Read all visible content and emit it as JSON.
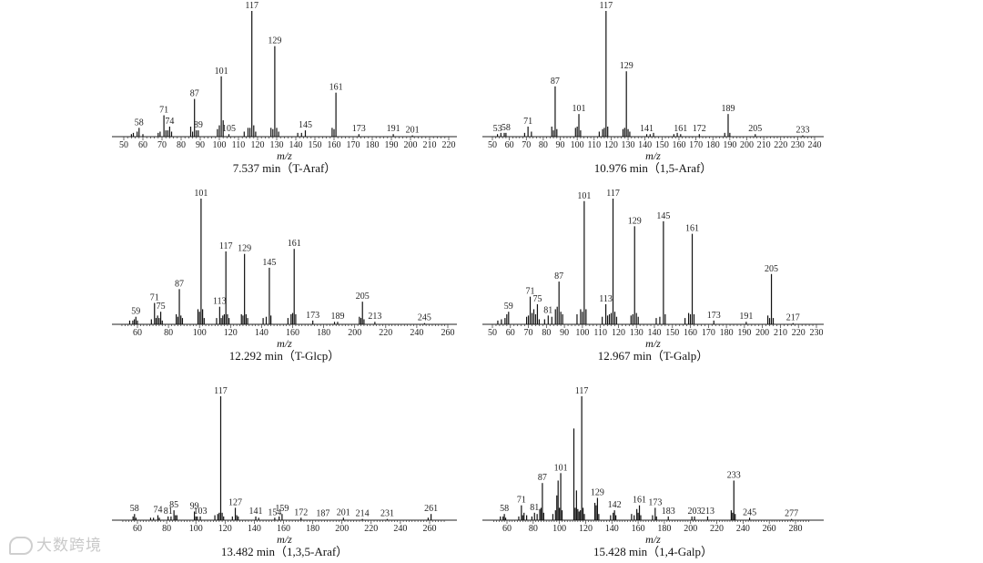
{
  "watermark": {
    "text": "大数跨境",
    "icon": "chat-bubble-logo"
  },
  "chart_data": [
    {
      "type": "bar",
      "caption": "7.537 min（T-Araf）",
      "xlabel": "m/z",
      "xlim": [
        50,
        220
      ],
      "xticks": [
        50,
        60,
        70,
        80,
        90,
        100,
        110,
        120,
        130,
        140,
        150,
        160,
        170,
        180,
        190,
        200,
        210,
        220
      ],
      "peaks": [
        [
          54,
          2
        ],
        [
          55,
          3
        ],
        [
          57,
          4
        ],
        [
          58,
          7
        ],
        [
          60,
          2
        ],
        [
          68,
          3
        ],
        [
          69,
          4
        ],
        [
          71,
          17
        ],
        [
          72,
          5
        ],
        [
          73,
          5
        ],
        [
          74,
          8
        ],
        [
          75,
          4
        ],
        [
          85,
          8
        ],
        [
          86,
          4
        ],
        [
          87,
          30
        ],
        [
          88,
          5
        ],
        [
          89,
          5
        ],
        [
          99,
          6
        ],
        [
          100,
          9
        ],
        [
          101,
          48
        ],
        [
          102,
          13
        ],
        [
          105,
          2
        ],
        [
          113,
          4
        ],
        [
          115,
          7
        ],
        [
          116,
          7
        ],
        [
          117,
          100
        ],
        [
          118,
          9
        ],
        [
          119,
          4
        ],
        [
          127,
          7
        ],
        [
          128,
          6
        ],
        [
          129,
          72
        ],
        [
          130,
          7
        ],
        [
          131,
          4
        ],
        [
          141,
          3
        ],
        [
          143,
          3
        ],
        [
          145,
          5
        ],
        [
          159,
          7
        ],
        [
          160,
          6
        ],
        [
          161,
          35
        ],
        [
          173,
          2
        ],
        [
          191,
          2
        ],
        [
          201,
          1
        ]
      ],
      "labels": [
        58,
        71,
        74,
        87,
        89,
        101,
        105,
        117,
        129,
        145,
        161,
        173,
        191,
        201
      ]
    },
    {
      "type": "bar",
      "caption": "10.976 min（1,5-Araf）",
      "xlabel": "m/z",
      "xlim": [
        50,
        240
      ],
      "xticks": [
        50,
        60,
        70,
        80,
        90,
        100,
        110,
        120,
        130,
        140,
        150,
        160,
        170,
        180,
        190,
        200,
        210,
        220,
        230,
        240
      ],
      "peaks": [
        [
          53,
          2
        ],
        [
          55,
          3
        ],
        [
          57,
          3
        ],
        [
          58,
          3
        ],
        [
          69,
          3
        ],
        [
          71,
          8
        ],
        [
          73,
          4
        ],
        [
          85,
          8
        ],
        [
          86,
          5
        ],
        [
          87,
          40
        ],
        [
          88,
          6
        ],
        [
          99,
          7
        ],
        [
          100,
          8
        ],
        [
          101,
          18
        ],
        [
          102,
          5
        ],
        [
          113,
          4
        ],
        [
          115,
          6
        ],
        [
          116,
          7
        ],
        [
          117,
          100
        ],
        [
          118,
          8
        ],
        [
          127,
          6
        ],
        [
          128,
          7
        ],
        [
          129,
          52
        ],
        [
          130,
          6
        ],
        [
          131,
          4
        ],
        [
          141,
          2
        ],
        [
          143,
          2
        ],
        [
          145,
          3
        ],
        [
          157,
          2
        ],
        [
          159,
          3
        ],
        [
          161,
          2
        ],
        [
          172,
          2
        ],
        [
          187,
          3
        ],
        [
          189,
          18
        ],
        [
          190,
          3
        ],
        [
          205,
          2
        ],
        [
          233,
          1
        ]
      ],
      "labels": [
        53,
        58,
        71,
        87,
        101,
        117,
        129,
        141,
        161,
        172,
        189,
        205,
        233
      ]
    },
    {
      "type": "bar",
      "caption": "12.292 min（T-Glcp）",
      "xlabel": "m/z",
      "xlim": [
        50,
        260
      ],
      "xticks": [
        60,
        80,
        100,
        120,
        140,
        160,
        180,
        200,
        220,
        240,
        260
      ],
      "peaks": [
        [
          55,
          3
        ],
        [
          57,
          3
        ],
        [
          58,
          4
        ],
        [
          59,
          6
        ],
        [
          60,
          3
        ],
        [
          69,
          4
        ],
        [
          71,
          17
        ],
        [
          72,
          5
        ],
        [
          73,
          7
        ],
        [
          74,
          5
        ],
        [
          75,
          10
        ],
        [
          76,
          3
        ],
        [
          85,
          8
        ],
        [
          86,
          6
        ],
        [
          87,
          28
        ],
        [
          88,
          7
        ],
        [
          89,
          5
        ],
        [
          99,
          12
        ],
        [
          100,
          10
        ],
        [
          101,
          100
        ],
        [
          102,
          12
        ],
        [
          103,
          5
        ],
        [
          111,
          5
        ],
        [
          113,
          14
        ],
        [
          114,
          5
        ],
        [
          115,
          7
        ],
        [
          116,
          8
        ],
        [
          117,
          58
        ],
        [
          118,
          8
        ],
        [
          119,
          5
        ],
        [
          127,
          8
        ],
        [
          128,
          7
        ],
        [
          129,
          56
        ],
        [
          130,
          8
        ],
        [
          131,
          5
        ],
        [
          141,
          5
        ],
        [
          143,
          6
        ],
        [
          145,
          45
        ],
        [
          146,
          7
        ],
        [
          157,
          5
        ],
        [
          159,
          8
        ],
        [
          160,
          9
        ],
        [
          161,
          60
        ],
        [
          162,
          8
        ],
        [
          173,
          3
        ],
        [
          187,
          2
        ],
        [
          189,
          2
        ],
        [
          203,
          6
        ],
        [
          204,
          5
        ],
        [
          205,
          18
        ],
        [
          206,
          4
        ],
        [
          213,
          2
        ],
        [
          245,
          1
        ]
      ],
      "labels": [
        59,
        71,
        75,
        87,
        101,
        113,
        117,
        129,
        145,
        161,
        173,
        189,
        205,
        213,
        245
      ]
    },
    {
      "type": "bar",
      "caption": "12.967 min（T-Galp）",
      "xlabel": "m/z",
      "xlim": [
        50,
        230
      ],
      "xticks": [
        50,
        60,
        70,
        80,
        90,
        100,
        110,
        120,
        130,
        140,
        150,
        160,
        170,
        180,
        190,
        200,
        210,
        220,
        230
      ],
      "peaks": [
        [
          53,
          3
        ],
        [
          55,
          4
        ],
        [
          57,
          5
        ],
        [
          58,
          8
        ],
        [
          59,
          10
        ],
        [
          69,
          6
        ],
        [
          70,
          7
        ],
        [
          71,
          22
        ],
        [
          72,
          9
        ],
        [
          73,
          12
        ],
        [
          74,
          8
        ],
        [
          75,
          16
        ],
        [
          76,
          4
        ],
        [
          79,
          4
        ],
        [
          81,
          7
        ],
        [
          83,
          6
        ],
        [
          85,
          12
        ],
        [
          86,
          14
        ],
        [
          87,
          34
        ],
        [
          88,
          10
        ],
        [
          89,
          8
        ],
        [
          97,
          8
        ],
        [
          99,
          12
        ],
        [
          100,
          10
        ],
        [
          101,
          98
        ],
        [
          102,
          12
        ],
        [
          111,
          6
        ],
        [
          113,
          16
        ],
        [
          114,
          7
        ],
        [
          115,
          8
        ],
        [
          116,
          9
        ],
        [
          117,
          100
        ],
        [
          118,
          10
        ],
        [
          119,
          6
        ],
        [
          127,
          7
        ],
        [
          128,
          8
        ],
        [
          129,
          78
        ],
        [
          130,
          9
        ],
        [
          131,
          6
        ],
        [
          141,
          5
        ],
        [
          143,
          6
        ],
        [
          145,
          82
        ],
        [
          146,
          8
        ],
        [
          157,
          5
        ],
        [
          159,
          9
        ],
        [
          160,
          8
        ],
        [
          161,
          72
        ],
        [
          162,
          8
        ],
        [
          173,
          3
        ],
        [
          191,
          2
        ],
        [
          203,
          7
        ],
        [
          204,
          5
        ],
        [
          205,
          40
        ],
        [
          206,
          5
        ],
        [
          217,
          1
        ]
      ],
      "labels": [
        59,
        71,
        75,
        81,
        87,
        101,
        113,
        117,
        129,
        145,
        161,
        173,
        191,
        205,
        217
      ]
    },
    {
      "type": "bar",
      "caption": "13.482 min（1,3,5-Araf）",
      "xlabel": "m/z",
      "xlim": [
        50,
        270
      ],
      "xticks": [
        60,
        80,
        100,
        120,
        140,
        160,
        180,
        200,
        220,
        240,
        260
      ],
      "peaks": [
        [
          57,
          3
        ],
        [
          58,
          5
        ],
        [
          59,
          2
        ],
        [
          69,
          2
        ],
        [
          71,
          2
        ],
        [
          74,
          4
        ],
        [
          75,
          2
        ],
        [
          81,
          3
        ],
        [
          83,
          3
        ],
        [
          85,
          8
        ],
        [
          86,
          4
        ],
        [
          87,
          4
        ],
        [
          99,
          7
        ],
        [
          100,
          3
        ],
        [
          101,
          3
        ],
        [
          103,
          3
        ],
        [
          113,
          4
        ],
        [
          115,
          5
        ],
        [
          116,
          6
        ],
        [
          117,
          100
        ],
        [
          118,
          6
        ],
        [
          119,
          3
        ],
        [
          125,
          3
        ],
        [
          127,
          10
        ],
        [
          128,
          4
        ],
        [
          129,
          3
        ],
        [
          141,
          3
        ],
        [
          143,
          2
        ],
        [
          154,
          2
        ],
        [
          157,
          3
        ],
        [
          159,
          5
        ],
        [
          172,
          2
        ],
        [
          201,
          2
        ],
        [
          214,
          1
        ],
        [
          231,
          1
        ],
        [
          259,
          2
        ],
        [
          261,
          5
        ]
      ],
      "labels": [
        58,
        74,
        81,
        85,
        99,
        103,
        117,
        127,
        141,
        154,
        159,
        172,
        187,
        201,
        214,
        231,
        261
      ]
    },
    {
      "type": "bar",
      "caption": "15.428 min（1,4-Galp）",
      "xlabel": "m/z",
      "xlim": [
        50,
        290
      ],
      "xticks": [
        60,
        80,
        100,
        120,
        140,
        160,
        180,
        200,
        220,
        240,
        260,
        280
      ],
      "peaks": [
        [
          55,
          3
        ],
        [
          57,
          3
        ],
        [
          58,
          5
        ],
        [
          59,
          2
        ],
        [
          69,
          3
        ],
        [
          71,
          12
        ],
        [
          72,
          4
        ],
        [
          73,
          6
        ],
        [
          75,
          4
        ],
        [
          79,
          3
        ],
        [
          81,
          6
        ],
        [
          83,
          5
        ],
        [
          85,
          9
        ],
        [
          86,
          10
        ],
        [
          87,
          30
        ],
        [
          88,
          6
        ],
        [
          95,
          5
        ],
        [
          97,
          8
        ],
        [
          98,
          20
        ],
        [
          99,
          32
        ],
        [
          100,
          10
        ],
        [
          101,
          38
        ],
        [
          102,
          8
        ],
        [
          111,
          74
        ],
        [
          112,
          10
        ],
        [
          113,
          24
        ],
        [
          114,
          9
        ],
        [
          115,
          7
        ],
        [
          116,
          8
        ],
        [
          117,
          100
        ],
        [
          118,
          10
        ],
        [
          119,
          5
        ],
        [
          127,
          14
        ],
        [
          128,
          12
        ],
        [
          129,
          18
        ],
        [
          130,
          5
        ],
        [
          139,
          4
        ],
        [
          141,
          6
        ],
        [
          142,
          8
        ],
        [
          143,
          4
        ],
        [
          155,
          5
        ],
        [
          157,
          4
        ],
        [
          159,
          9
        ],
        [
          160,
          6
        ],
        [
          161,
          12
        ],
        [
          162,
          4
        ],
        [
          171,
          4
        ],
        [
          173,
          10
        ],
        [
          174,
          3
        ],
        [
          183,
          3
        ],
        [
          201,
          3
        ],
        [
          203,
          3
        ],
        [
          213,
          3
        ],
        [
          231,
          8
        ],
        [
          232,
          6
        ],
        [
          233,
          32
        ],
        [
          234,
          5
        ],
        [
          245,
          2
        ],
        [
          277,
          1
        ]
      ],
      "labels": [
        58,
        71,
        81,
        87,
        101,
        117,
        129,
        142,
        161,
        173,
        183,
        203,
        213,
        233,
        245,
        277
      ]
    }
  ]
}
